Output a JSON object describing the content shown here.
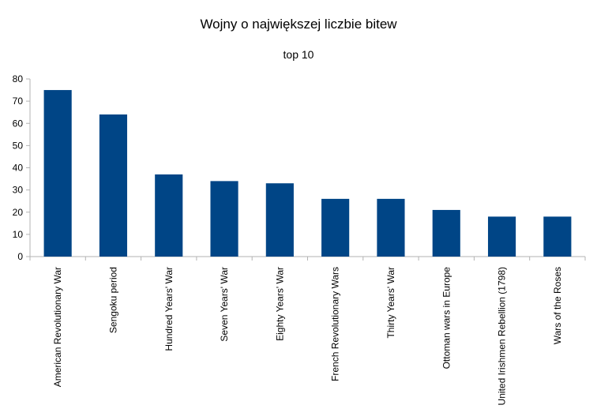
{
  "colors": {
    "bar": "#004586",
    "axis": "#b3b3b3",
    "grid": "#b3b3b3",
    "text": "#000000"
  },
  "chart_data": {
    "type": "bar",
    "title": "Wojny o największej liczbie bitew",
    "subtitle": "top 10",
    "xlabel": "",
    "ylabel": "",
    "ylim": [
      0,
      80
    ],
    "yticks": [
      0,
      10,
      20,
      30,
      40,
      50,
      60,
      70,
      80
    ],
    "grid": false,
    "legend": "none",
    "categories": [
      "American Revolutionary War",
      "Sengoku period",
      "Hundred Years' War",
      "Seven Years' War",
      "Eighty Years' War",
      "French Revolutionary Wars",
      "Thirty Years' War",
      "Ottoman wars in Europe",
      "United Irishmen Rebellion (1798)",
      "Wars of the Roses"
    ],
    "values": [
      75,
      64,
      37,
      34,
      33,
      26,
      26,
      21,
      18,
      18
    ]
  }
}
